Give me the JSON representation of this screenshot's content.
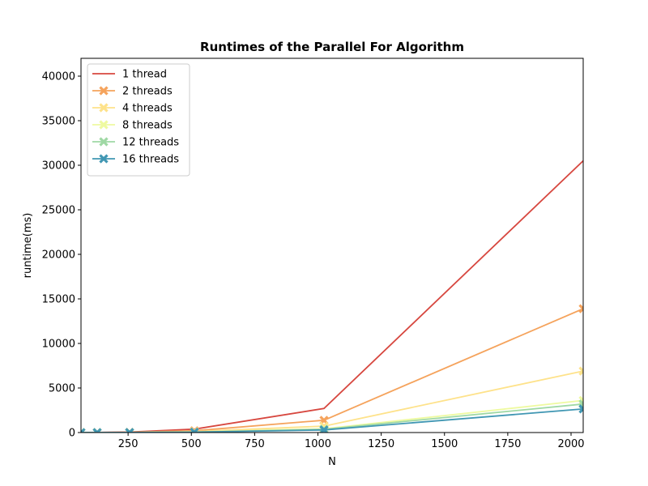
{
  "chart_data": {
    "type": "line",
    "title": "Runtimes of the Parallel For Algorithm",
    "xlabel": "N",
    "ylabel": "runtime(ms)",
    "xlim": [
      64,
      2048
    ],
    "ylim": [
      0,
      42000
    ],
    "xticks": [
      250,
      500,
      750,
      1000,
      1250,
      1500,
      1750,
      2000
    ],
    "yticks": [
      0,
      5000,
      10000,
      15000,
      20000,
      25000,
      30000,
      35000,
      40000
    ],
    "x": [
      64,
      128,
      256,
      512,
      1024,
      2048
    ],
    "grid": false,
    "legend_position": "upper left",
    "series": [
      {
        "name": "1 thread",
        "color": "#d7473f",
        "marker": "none",
        "values": [
          2,
          10,
          50,
          380,
          2700,
          30500
        ]
      },
      {
        "name": "2 threads",
        "color": "#f5a35c",
        "marker": "x",
        "values": [
          2,
          6,
          28,
          200,
          1380,
          13900
        ]
      },
      {
        "name": "4 threads",
        "color": "#fee28a",
        "marker": "x",
        "values": [
          1,
          4,
          15,
          110,
          720,
          6900
        ]
      },
      {
        "name": "8 threads",
        "color": "#eefaa0",
        "marker": "x",
        "values": [
          1,
          3,
          10,
          65,
          420,
          3600
        ]
      },
      {
        "name": "12 threads",
        "color": "#9fd8a4",
        "marker": "x",
        "values": [
          1,
          3,
          9,
          55,
          360,
          3200
        ]
      },
      {
        "name": "16 threads",
        "color": "#4197b3",
        "marker": "x",
        "values": [
          1,
          2,
          8,
          45,
          290,
          2650
        ]
      }
    ]
  }
}
